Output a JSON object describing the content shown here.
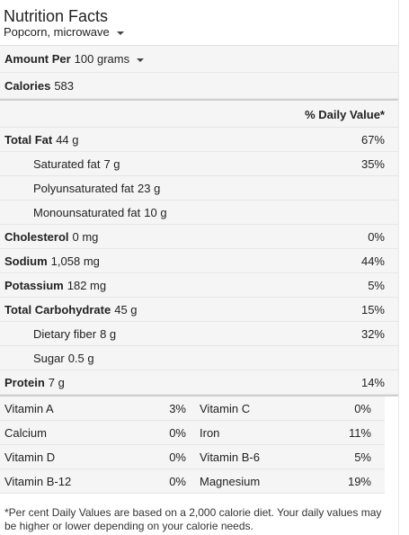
{
  "header": {
    "title": "Nutrition Facts",
    "food_selector": "Popcorn, microwave"
  },
  "amount": {
    "label": "Amount Per",
    "unit_selector": "100 grams"
  },
  "calories": {
    "label": "Calories",
    "value": "583"
  },
  "dv_header": "% Daily Value*",
  "nutrients": [
    {
      "label": "Total Fat",
      "amount": "44 g",
      "dv": "67%",
      "bold": true
    },
    {
      "label": "Saturated fat",
      "amount": "7 g",
      "dv": "35%",
      "bold": false
    },
    {
      "label": "Polyunsaturated fat",
      "amount": "23 g",
      "dv": "",
      "bold": false
    },
    {
      "label": "Monounsaturated fat",
      "amount": "10 g",
      "dv": "",
      "bold": false
    },
    {
      "label": "Cholesterol",
      "amount": "0 mg",
      "dv": "0%",
      "bold": true
    },
    {
      "label": "Sodium",
      "amount": "1,058 mg",
      "dv": "44%",
      "bold": true
    },
    {
      "label": "Potassium",
      "amount": "182 mg",
      "dv": "5%",
      "bold": true
    },
    {
      "label": "Total Carbohydrate",
      "amount": "45 g",
      "dv": "15%",
      "bold": true
    },
    {
      "label": "Dietary fiber",
      "amount": "8 g",
      "dv": "32%",
      "bold": false
    },
    {
      "label": "Sugar",
      "amount": "0.5 g",
      "dv": "",
      "bold": false
    },
    {
      "label": "Protein",
      "amount": "7 g",
      "dv": "14%",
      "bold": true
    }
  ],
  "vitamins": [
    {
      "name": "Vitamin A",
      "dv": "3%"
    },
    {
      "name": "Vitamin C",
      "dv": "0%"
    },
    {
      "name": "Calcium",
      "dv": "0%"
    },
    {
      "name": "Iron",
      "dv": "11%"
    },
    {
      "name": "Vitamin D",
      "dv": "0%"
    },
    {
      "name": "Vitamin B-6",
      "dv": "5%"
    },
    {
      "name": "Vitamin B-12",
      "dv": "0%"
    },
    {
      "name": "Magnesium",
      "dv": "19%"
    }
  ],
  "footnote": "*Per cent Daily Values are based on a 2,000 calorie diet. Your daily values may be higher or lower depending on your calorie needs.",
  "icons": {
    "dropdown": "chevron-down-icon"
  }
}
